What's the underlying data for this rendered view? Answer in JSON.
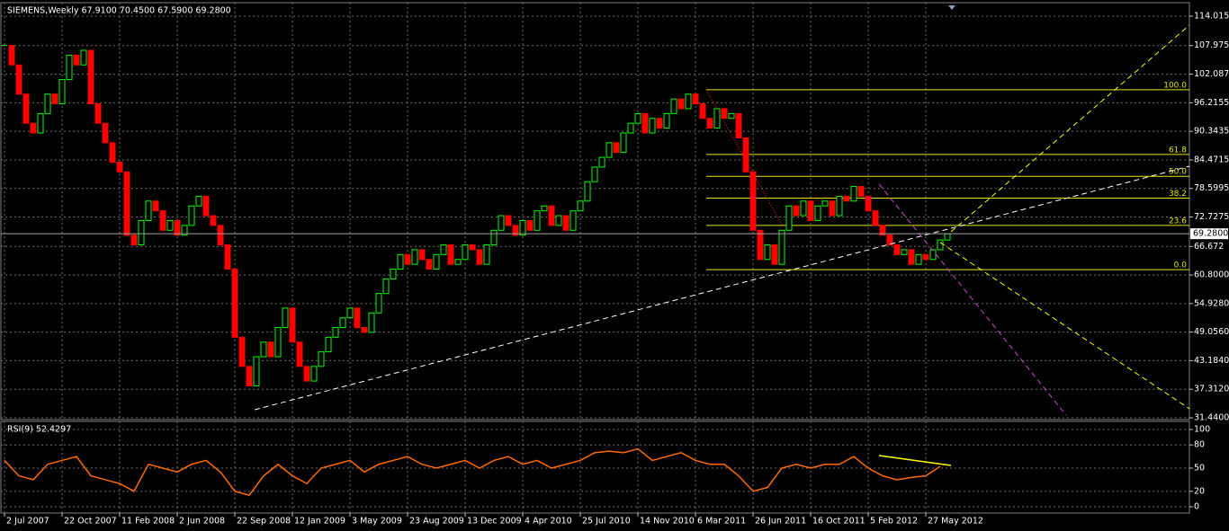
{
  "chart_data": [
    {
      "type": "candlestick",
      "title": "SIEMENS,Weekly  67.9100 70.4500 67.5900 69.2800",
      "x": [
        0,
        2,
        4,
        6,
        8,
        10,
        12,
        14,
        16,
        18,
        20,
        22,
        24,
        26,
        28,
        30,
        32,
        34,
        36,
        38,
        40,
        42,
        44,
        46,
        48,
        50,
        52,
        54,
        56,
        58,
        60,
        62,
        64,
        66,
        68,
        70,
        72,
        74,
        76,
        78,
        80,
        82,
        84,
        86,
        88,
        90,
        92,
        94,
        96,
        98,
        100,
        102,
        104,
        106,
        108,
        110,
        112,
        114,
        116,
        118,
        120,
        122,
        124,
        126,
        128,
        130,
        132,
        134,
        136,
        138,
        140,
        142,
        144,
        146,
        148,
        150,
        152,
        154,
        156,
        158,
        160,
        162,
        164,
        166,
        168,
        170,
        172,
        174,
        176,
        178,
        180,
        182,
        184,
        186,
        188,
        190,
        192,
        194,
        196,
        198,
        200,
        202,
        204,
        206,
        208,
        210,
        212,
        214,
        216,
        218,
        220,
        222,
        224,
        226,
        228,
        230,
        232,
        234,
        236,
        238,
        240,
        242,
        244,
        246,
        248,
        250,
        252,
        254,
        256,
        258,
        260,
        262
      ],
      "values": [
        108,
        104,
        98,
        92,
        90,
        94,
        98,
        96,
        101,
        106,
        104,
        107,
        96,
        92,
        88,
        84,
        82,
        69,
        67,
        72,
        76,
        74,
        70,
        72,
        69,
        71,
        75,
        77,
        73,
        71,
        67,
        62,
        48,
        42,
        38,
        44,
        47,
        44,
        50,
        54,
        47,
        42,
        39,
        42,
        45,
        48,
        50,
        52,
        54,
        50,
        49,
        53,
        57,
        60,
        62,
        65,
        63,
        66,
        64,
        62,
        65,
        67,
        63,
        64,
        67,
        66,
        63,
        67,
        70,
        73,
        71,
        69,
        72,
        70,
        74,
        75,
        71,
        73,
        70,
        74,
        76,
        80,
        83,
        85,
        88,
        86,
        90,
        92,
        94,
        90,
        93,
        91,
        94,
        97,
        95,
        98,
        96,
        93,
        91,
        95,
        93,
        94,
        89,
        82,
        70,
        64,
        67,
        63,
        70,
        75,
        73,
        76,
        72,
        75,
        76,
        73,
        77,
        76,
        79,
        77,
        74,
        71,
        69,
        67,
        65,
        66,
        63,
        65,
        64,
        66,
        68,
        69.28
      ],
      "up_color": "#00ff00",
      "down_color": "#ff0000",
      "xlim": [
        -1.25,
        329.25
      ],
      "ylim": [
        31.07,
        116.79
      ],
      "yticks": [
        114.015,
        107.975,
        102.087,
        96.2155,
        90.3435,
        84.4715,
        78.5995,
        72.7275,
        66.672,
        {
          "value": 60.8,
          "label": "60.8000"
        },
        {
          "value": 54.928,
          "label": "54.9280"
        },
        {
          "value": 49.056,
          "label": "49.0560"
        },
        {
          "value": 43.184,
          "label": "43.1840"
        },
        {
          "value": 37.312,
          "label": "37.3120"
        },
        {
          "value": 31.44,
          "label": "31.4400"
        }
      ],
      "xticks": [
        {
          "value": 0,
          "label": "2 Jul 2007"
        },
        {
          "value": 16,
          "label": "22 Oct 2007"
        },
        {
          "value": 32,
          "label": "11 Feb 2008"
        },
        {
          "value": 48,
          "label": "2 Jun 2008"
        },
        {
          "value": 64,
          "label": "22 Sep 2008"
        },
        {
          "value": 80,
          "label": "12 Jan 2009"
        },
        {
          "value": 96,
          "label": "3 May 2009"
        },
        {
          "value": 112,
          "label": "23 Aug 2009"
        },
        {
          "value": 128,
          "label": "13 Dec 2009"
        },
        {
          "value": 144,
          "label": "4 Apr 2010"
        },
        {
          "value": 160,
          "label": "25 Jul 2010"
        },
        {
          "value": 176,
          "label": "14 Nov 2010"
        },
        {
          "value": 192,
          "label": "6 Mar 2011"
        },
        {
          "value": 208,
          "label": "26 Jun 2011"
        },
        {
          "value": 224,
          "label": "16 Oct 2011"
        },
        {
          "value": 240,
          "label": "5 Feb 2012"
        },
        {
          "value": 256,
          "label": "27 May 2012"
        }
      ],
      "grid": true,
      "current": {
        "value": 69.28,
        "label": "69.2800"
      },
      "fibonacci": {
        "color": "#e6e600",
        "start": 195,
        "levels": [
          {
            "label": "100.0",
            "price": 98.9
          },
          {
            "label": "61.8",
            "price": 85.6
          },
          {
            "label": "50.0",
            "price": 81.1
          },
          {
            "label": "38.2",
            "price": 76.6
          },
          {
            "label": "23.6",
            "price": 71.0
          },
          {
            "label": "0.0",
            "price": 61.9
          }
        ]
      },
      "trendlines": [
        {
          "color": "#ffffff",
          "style": "dashed",
          "x": [
            69.5,
            329.25
          ],
          "values": [
            33.1,
            83.17
          ]
        },
        {
          "color": "#ffff00",
          "style": "dashed",
          "x": [
            263,
            329.25
          ],
          "values": [
            69.67,
            112.17
          ]
        },
        {
          "color": "#ffff00",
          "style": "dashed",
          "x": [
            260,
            329.25
          ],
          "values": [
            67.5,
            33.3
          ]
        },
        {
          "color": "#cc44cc",
          "style": "dashed",
          "x": [
            243,
            295
          ],
          "values": [
            79.5,
            31.99
          ]
        },
        {
          "color": "#ff2222",
          "style": "dotted",
          "x": [
            195,
            216
          ],
          "values": [
            98.87,
            71.1
          ]
        }
      ]
    },
    {
      "type": "line",
      "title": "RSI(9) 52.4297",
      "x": [
        0,
        4,
        8,
        12,
        16,
        20,
        24,
        28,
        32,
        36,
        40,
        44,
        48,
        52,
        56,
        60,
        64,
        68,
        72,
        76,
        80,
        84,
        88,
        92,
        96,
        100,
        104,
        108,
        112,
        116,
        120,
        124,
        128,
        132,
        136,
        140,
        144,
        148,
        152,
        156,
        160,
        164,
        168,
        172,
        176,
        180,
        184,
        188,
        192,
        196,
        200,
        204,
        208,
        212,
        216,
        220,
        224,
        228,
        232,
        236,
        240,
        244,
        248,
        252,
        256,
        260
      ],
      "values": [
        60,
        40,
        35,
        55,
        60,
        65,
        40,
        35,
        30,
        20,
        55,
        50,
        45,
        55,
        60,
        45,
        20,
        15,
        40,
        55,
        40,
        30,
        50,
        55,
        60,
        45,
        55,
        60,
        65,
        55,
        50,
        55,
        60,
        50,
        60,
        65,
        55,
        60,
        50,
        55,
        60,
        70,
        72,
        70,
        75,
        60,
        65,
        70,
        60,
        55,
        55,
        40,
        20,
        25,
        50,
        55,
        50,
        55,
        55,
        65,
        50,
        40,
        35,
        38,
        40,
        52.43
      ],
      "color": "#ff6a00",
      "xlim": [
        -1.25,
        329.25
      ],
      "ylim": [
        -8.1,
        110.5
      ],
      "yticks": [
        100,
        80,
        50,
        20,
        0
      ],
      "trendlines": [
        {
          "color": "#ffff00",
          "style": "solid",
          "x": [
            243,
            263
          ],
          "values": [
            66.3,
            53.5
          ]
        }
      ]
    }
  ]
}
